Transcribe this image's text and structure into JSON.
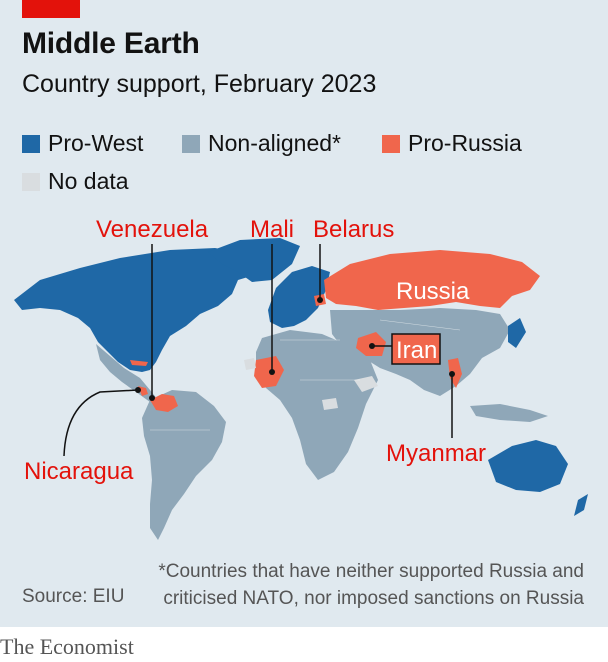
{
  "header": {
    "title": "Middle Earth",
    "subtitle": "Country support, February 2023"
  },
  "legend": [
    {
      "label": "Pro-West",
      "color": "#1f68a6"
    },
    {
      "label": "Non-aligned*",
      "color": "#8fa7b8"
    },
    {
      "label": "Pro-Russia",
      "color": "#f0664c"
    },
    {
      "label": "No data",
      "color": "#d9dde0"
    }
  ],
  "callouts": {
    "venezuela": "Venezuela",
    "mali": "Mali",
    "belarus": "Belarus",
    "russia": "Russia",
    "iran": "Iran",
    "nicaragua": "Nicaragua",
    "myanmar": "Myanmar"
  },
  "colors": {
    "background": "#e0e9ef",
    "pro_west": "#1f68a6",
    "non_aligned": "#8fa7b8",
    "pro_russia": "#f0664c",
    "no_data": "#d9dde0",
    "accent": "#e3120b"
  },
  "source": "Source: EIU",
  "footnote": "*Countries that have neither supported Russia and criticised NATO, nor imposed sanctions on Russia",
  "brand": "The Economist"
}
